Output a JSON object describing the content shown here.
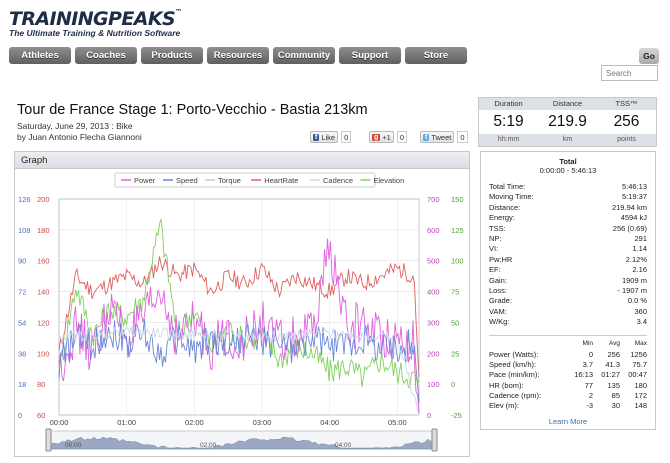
{
  "header": {
    "logo_text": "TRAININGPEAKS",
    "logo_tm": "™",
    "tagline": "The Ultimate Training & Nutrition Software"
  },
  "nav": {
    "items": [
      "Athletes",
      "Coaches",
      "Products",
      "Resources",
      "Community",
      "Support",
      "Store"
    ],
    "go_label": "Go",
    "search_placeholder": "Search"
  },
  "workout": {
    "title": "Tour de France Stage 1: Porto-Vecchio - Bastia 213km",
    "date_line": "Saturday, June 29, 2013 : Bike",
    "author_line": "by Juan Antonio Flecha Giannoni"
  },
  "social": {
    "like_label": "Like",
    "like_count": "0",
    "plus_label": "+1",
    "plus_count": "0",
    "tweet_label": "Tweet",
    "tweet_count": "0"
  },
  "summary": {
    "duration_label": "Duration",
    "duration_value": "5:19",
    "duration_unit": "hh:mm",
    "distance_label": "Distance",
    "distance_value": "219.9",
    "distance_unit": "km",
    "tss_label": "TSS™",
    "tss_value": "256",
    "tss_unit": "points"
  },
  "graph": {
    "title": "Graph",
    "legend": [
      {
        "name": "Power",
        "color": "#e060e0"
      },
      {
        "name": "Speed",
        "color": "#6a88d8"
      },
      {
        "name": "Torque",
        "color": "#c8c8e8"
      },
      {
        "name": "HeartRate",
        "color": "#e06060"
      },
      {
        "name": "Cadence",
        "color": "#c8d8e8"
      },
      {
        "name": "Elevation",
        "color": "#80d060"
      }
    ],
    "left_axis_speed": [
      "126",
      "108",
      "90",
      "72",
      "54",
      "36",
      "18",
      "0"
    ],
    "left_axis_hr": [
      "200",
      "180",
      "160",
      "140",
      "120",
      "100",
      "80",
      "60"
    ],
    "right_axis_power": [
      "700",
      "600",
      "500",
      "400",
      "300",
      "200",
      "100",
      "0"
    ],
    "right_axis_elev": [
      "150",
      "125",
      "100",
      "75",
      "50",
      "25",
      "0",
      "-25"
    ],
    "x_ticks": [
      "00:00",
      "01:00",
      "02:00",
      "03:00",
      "04:00",
      "05:00"
    ],
    "overview_ticks": [
      "00:00",
      "02:00",
      "04:00"
    ]
  },
  "chart_data": {
    "type": "line",
    "x_unit": "hh:mm",
    "x_range": [
      "00:00",
      "05:19"
    ],
    "axes": {
      "speed_kmh": [
        0,
        126
      ],
      "heartrate_bpm": [
        60,
        200
      ],
      "power_w": [
        0,
        700
      ],
      "elevation_m": [
        -25,
        150
      ]
    },
    "series": [
      {
        "name": "HeartRate",
        "axis": "heartrate_bpm",
        "color": "#e06060",
        "x_hours": [
          0,
          0.25,
          0.5,
          0.75,
          1,
          1.25,
          1.5,
          1.75,
          2,
          2.25,
          2.5,
          2.75,
          3,
          3.25,
          3.5,
          3.75,
          4,
          4.25,
          4.5,
          4.75,
          5,
          5.25,
          5.32
        ],
        "values": [
          100,
          150,
          140,
          145,
          150,
          145,
          160,
          150,
          155,
          140,
          150,
          145,
          155,
          140,
          150,
          145,
          140,
          150,
          145,
          150,
          155,
          150,
          80
        ]
      },
      {
        "name": "Elevation",
        "axis": "elevation_m",
        "color": "#80d060",
        "x_hours": [
          0,
          0.25,
          0.5,
          0.75,
          1,
          1.25,
          1.5,
          1.75,
          2,
          2.25,
          2.5,
          2.75,
          3,
          3.25,
          3.5,
          3.75,
          4,
          4.25,
          4.5,
          4.75,
          5,
          5.25,
          5.32
        ],
        "values": [
          10,
          80,
          40,
          60,
          55,
          70,
          130,
          40,
          60,
          30,
          45,
          35,
          40,
          20,
          30,
          25,
          10,
          15,
          5,
          20,
          10,
          5,
          0
        ]
      },
      {
        "name": "Power",
        "axis": "power_w",
        "color": "#e060e0",
        "x_hours": [
          0,
          0.25,
          0.5,
          0.75,
          1,
          1.25,
          1.5,
          1.75,
          2,
          2.25,
          2.5,
          2.75,
          3,
          3.25,
          3.5,
          3.75,
          4,
          4.25,
          4.5,
          4.75,
          5,
          5.25,
          5.32
        ],
        "values": [
          150,
          280,
          200,
          350,
          250,
          300,
          400,
          250,
          300,
          220,
          260,
          240,
          300,
          230,
          250,
          260,
          550,
          280,
          300,
          260,
          250,
          240,
          0
        ]
      },
      {
        "name": "Speed",
        "axis": "speed_kmh",
        "color": "#6a88d8",
        "x_hours": [
          0,
          0.25,
          0.5,
          0.75,
          1,
          1.25,
          1.5,
          1.75,
          2,
          2.25,
          2.5,
          2.75,
          3,
          3.25,
          3.5,
          3.75,
          4,
          4.25,
          4.5,
          4.75,
          5,
          5.25,
          5.32
        ],
        "values": [
          30,
          45,
          40,
          50,
          42,
          48,
          35,
          45,
          38,
          44,
          40,
          46,
          42,
          44,
          38,
          45,
          40,
          42,
          44,
          40,
          38,
          42,
          10
        ]
      },
      {
        "name": "Cadence",
        "axis": "power_w",
        "color": "#c8d8e8",
        "x_hours": [
          0,
          1,
          2,
          3,
          4,
          5,
          5.32
        ],
        "values": [
          250,
          270,
          260,
          255,
          265,
          250,
          0
        ]
      }
    ]
  },
  "details": {
    "title": "Total",
    "range": "0:00:00 - 5:46:13",
    "rows": [
      {
        "label": "Total Time:",
        "value": "5:46:13"
      },
      {
        "label": "Moving Time:",
        "value": "5:19:37"
      },
      {
        "label": "Distance:",
        "value": "219.94 km"
      },
      {
        "label": "Energy:",
        "value": "4594 kJ"
      },
      {
        "label": "TSS:",
        "value": "256 (0.69)"
      },
      {
        "label": "NP:",
        "value": "291"
      },
      {
        "label": "VI:",
        "value": "1.14"
      },
      {
        "label": "Pw:HR",
        "value": "2.12%"
      },
      {
        "label": "EF:",
        "value": "2.16"
      },
      {
        "label": "Gain:",
        "value": "1909 m"
      },
      {
        "label": "Loss:",
        "value": "- 1907 m"
      },
      {
        "label": "Grade:",
        "value": "0.0 %"
      },
      {
        "label": "VAM:",
        "value": "360"
      },
      {
        "label": "W/Kg:",
        "value": "3.4"
      }
    ],
    "mm_headers": [
      "Min",
      "Avg",
      "Max"
    ],
    "mm_rows": [
      {
        "label": "Power (Watts):",
        "min": "0",
        "avg": "256",
        "max": "1256"
      },
      {
        "label": "Speed (km/h):",
        "min": "3.7",
        "avg": "41.3",
        "max": "75.7"
      },
      {
        "label": "Pace (min/km):",
        "min": "16:13",
        "avg": "01:27",
        "max": "00:47"
      },
      {
        "label": "HR (bom):",
        "min": "77",
        "avg": "135",
        "max": "180"
      },
      {
        "label": "Cadence (rpm):",
        "min": "2",
        "avg": "85",
        "max": "172"
      },
      {
        "label": "Elev (m):",
        "min": "-3",
        "avg": "30",
        "max": "148"
      }
    ],
    "learn_more": "Learn More"
  }
}
